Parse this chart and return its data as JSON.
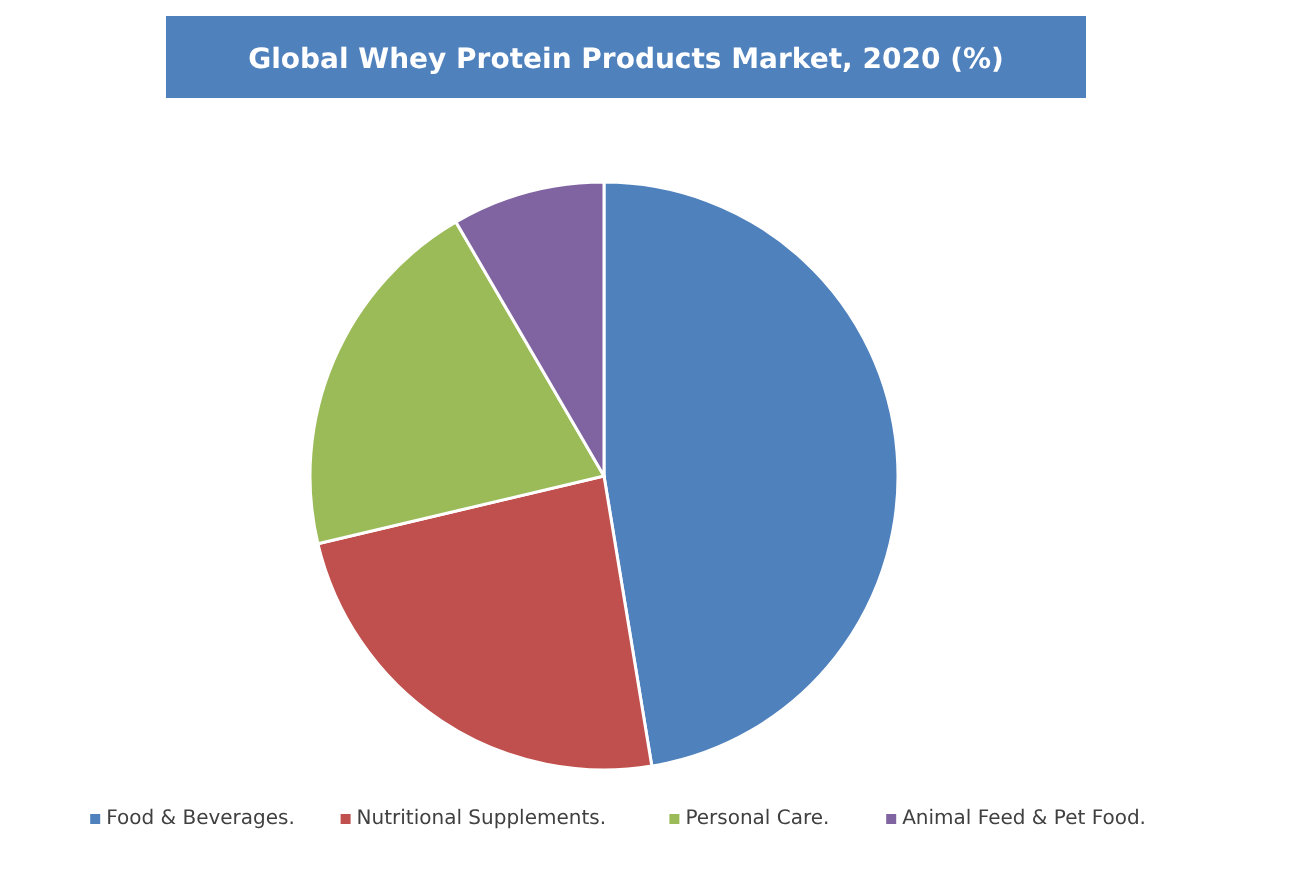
{
  "chart_data": {
    "type": "pie",
    "title": "Global Whey Protein Products Market, 2020 (%)",
    "categories": [
      "Food & Beverages.",
      "Nutritional Supplements.",
      "Personal Care.",
      "Animal Feed & Pet Food."
    ],
    "values": [
      47.4,
      23.9,
      20.3,
      8.4
    ],
    "colors": [
      "#4f81bd",
      "#c0504d",
      "#9bbb59",
      "#8064a2"
    ],
    "legend": "bottom"
  }
}
